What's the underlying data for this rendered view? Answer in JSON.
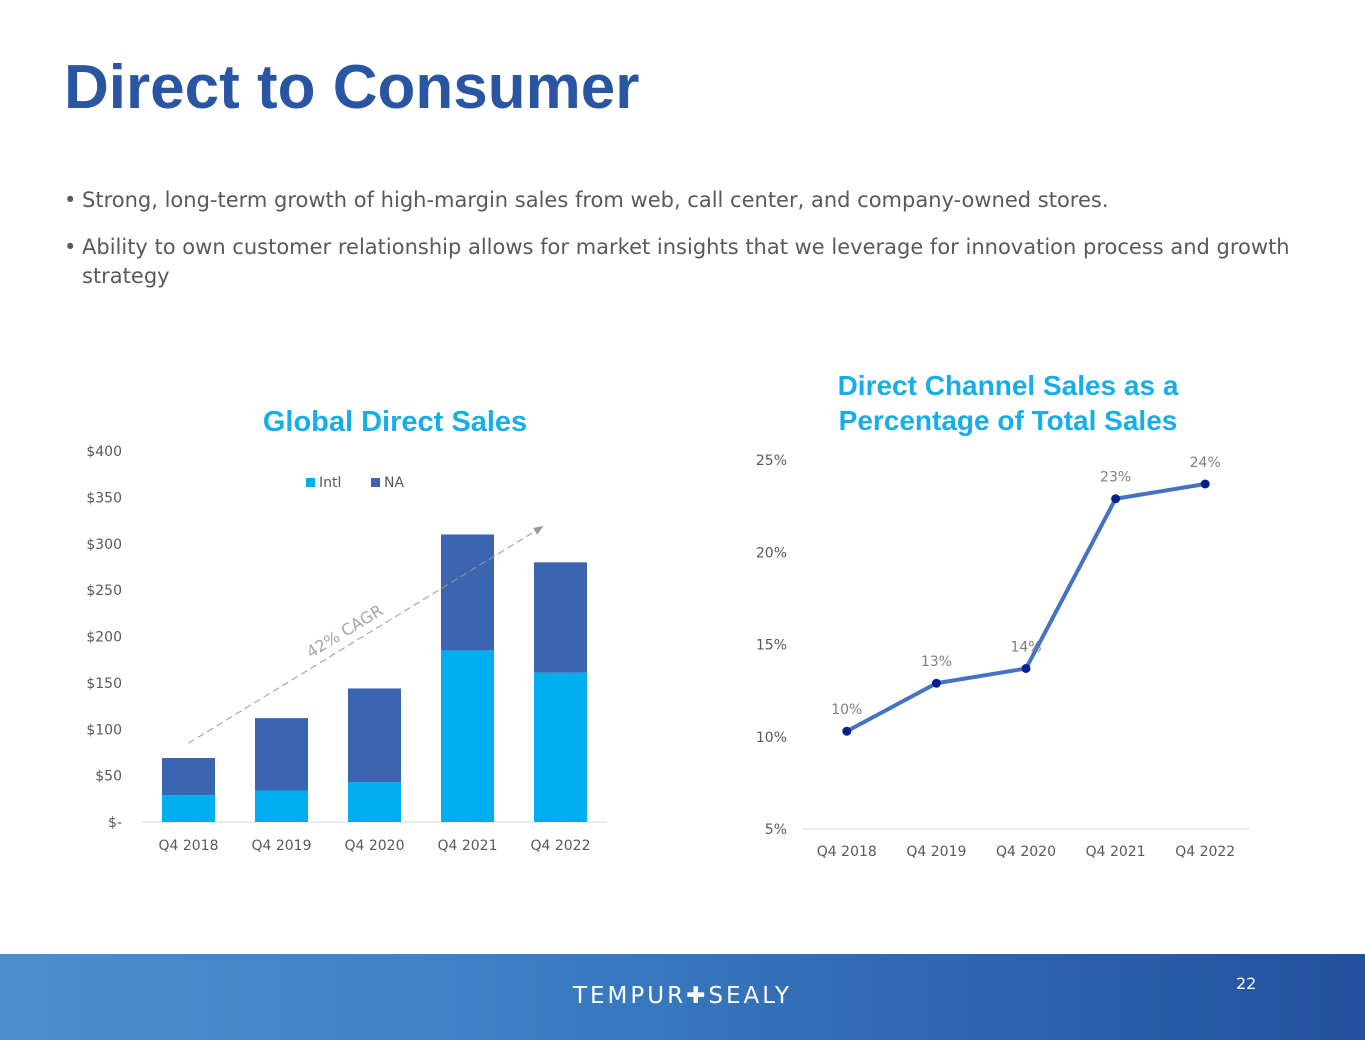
{
  "slide": {
    "title": "Direct to Consumer",
    "bullets": [
      "Strong, long-term growth of high-margin sales from web, call center, and company-owned stores.",
      "Ability to own customer relationship allows for market insights that we leverage for innovation process and growth strategy"
    ]
  },
  "chart_data": [
    {
      "type": "bar",
      "stacked": true,
      "title": "Global Direct Sales",
      "categories": [
        "Q4 2018",
        "Q4 2019",
        "Q4 2020",
        "Q4 2021",
        "Q4 2022"
      ],
      "series": [
        {
          "name": "Intl",
          "values": [
            29,
            34,
            43,
            185,
            161
          ],
          "color": "#00aeef"
        },
        {
          "name": "NA",
          "values": [
            40,
            78,
            101,
            125,
            119
          ],
          "color": "#3b65b0"
        }
      ],
      "ylim": [
        0,
        400
      ],
      "yticks": [
        0,
        50,
        100,
        150,
        200,
        250,
        300,
        350,
        400
      ],
      "ytick_labels": [
        "$-",
        "$50",
        "$100",
        "$150",
        "$200",
        "$250",
        "$300",
        "$350",
        "$400"
      ],
      "legend": "top-center",
      "annotation": "42% CAGR"
    },
    {
      "type": "line",
      "title_line1": "Direct Channel Sales as a",
      "title_line2": "Percentage of Total Sales",
      "categories": [
        "Q4 2018",
        "Q4 2019",
        "Q4 2020",
        "Q4 2021",
        "Q4 2022"
      ],
      "values": [
        10.3,
        12.9,
        13.7,
        22.9,
        23.7
      ],
      "data_labels": [
        "10%",
        "13%",
        "14%",
        "23%",
        "24%"
      ],
      "ylim": [
        5,
        25
      ],
      "yticks": [
        5,
        10,
        15,
        20,
        25
      ],
      "ytick_labels": [
        "5%",
        "10%",
        "15%",
        "20%",
        "25%"
      ],
      "line_color": "#4472c4",
      "marker_color": "#0a1f8f"
    }
  ],
  "footer": {
    "brand_left": "TEMPUR",
    "brand_plus": "✚",
    "brand_right": "SEALY",
    "page_number": "22"
  }
}
